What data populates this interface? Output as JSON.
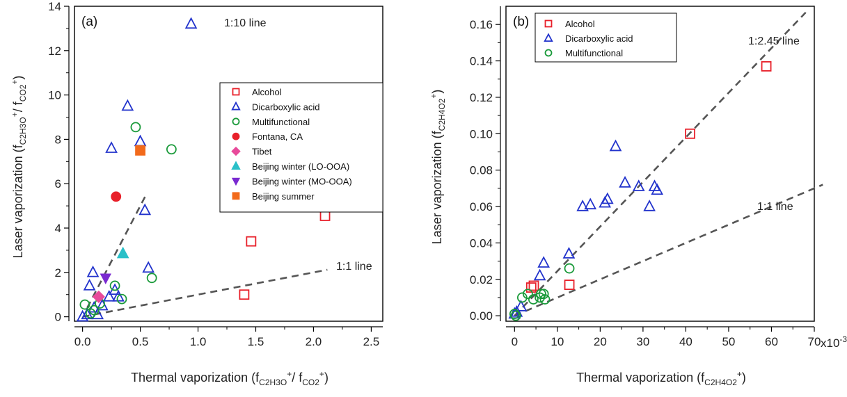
{
  "chart_data": [
    {
      "type": "scatter",
      "panel_label": "(a)",
      "xlabel": "Thermal vaporization (fC2H3O+/ fCO2+)",
      "ylabel": "Laser vaporization (fC2H3O+/ fCO2+)",
      "xlabel_parts": {
        "pre": "Thermal vaporization (f",
        "s1": "C",
        "n1": "2",
        "s2": "H",
        "n2": "3",
        "s3": "O",
        "sup1": "+",
        "mid": "/ f",
        "s4": "CO",
        "n3": "2",
        "sup2": "+",
        "post": ")"
      },
      "ylabel_parts": {
        "pre": "Laser vaporization (f",
        "s1": "C",
        "n1": "2",
        "s2": "H",
        "n2": "3",
        "s3": "O",
        "sup1": "+",
        "mid": "/ f",
        "s4": "CO",
        "n3": "2",
        "sup2": "+",
        "post": ")"
      },
      "xlim": [
        -0.07,
        2.6
      ],
      "ylim": [
        -0.2,
        14
      ],
      "xticks": [
        0.0,
        0.5,
        1.0,
        1.5,
        2.0,
        2.5
      ],
      "xtick_labels": [
        "0.0",
        "0.5",
        "1.0",
        "1.5",
        "2.0",
        "2.5"
      ],
      "yticks": [
        0,
        2,
        4,
        6,
        8,
        10,
        12,
        14
      ],
      "ytick_labels": [
        "0",
        "2",
        "4",
        "6",
        "8",
        "10",
        "12",
        "14"
      ],
      "legend_position": "center-right",
      "reference_lines": [
        {
          "label": "1:10 line",
          "slope": 10,
          "x_range": [
            0.04,
            0.55
          ]
        },
        {
          "label": "1:1 line",
          "slope": 1,
          "x_range": [
            0.0,
            2.12
          ]
        }
      ],
      "series": [
        {
          "name": "Alcohol",
          "marker": "square-open",
          "color": "#e8202a",
          "points": [
            [
              1.4,
              1.0
            ],
            [
              1.46,
              3.4
            ],
            [
              2.1,
              4.55
            ]
          ]
        },
        {
          "name": "Dicarboxylic acid",
          "marker": "triangle-open",
          "color": "#2233cc",
          "points": [
            [
              0.94,
              13.2
            ],
            [
              0.39,
              9.5
            ],
            [
              0.25,
              7.6
            ],
            [
              0.5,
              7.9
            ],
            [
              0.54,
              4.8
            ],
            [
              0.57,
              2.2
            ],
            [
              0.09,
              2.0
            ],
            [
              0.06,
              1.4
            ],
            [
              0.28,
              1.2
            ],
            [
              0.23,
              0.9
            ],
            [
              0.17,
              0.5
            ],
            [
              0.1,
              0.4
            ],
            [
              0.04,
              0.1
            ],
            [
              0.0,
              0.0
            ],
            [
              0.13,
              0.1
            ],
            [
              0.31,
              0.9
            ]
          ]
        },
        {
          "name": "Multifunctional",
          "marker": "circle-open",
          "color": "#1a9a3a",
          "points": [
            [
              0.46,
              8.55
            ],
            [
              0.77,
              7.55
            ],
            [
              0.6,
              1.75
            ],
            [
              0.28,
              1.4
            ],
            [
              0.34,
              0.8
            ],
            [
              0.02,
              0.55
            ],
            [
              0.1,
              0.3
            ],
            [
              0.07,
              0.15
            ],
            [
              0.15,
              0.6
            ]
          ]
        },
        {
          "name": "Fontana, CA",
          "marker": "circle-filled",
          "color": "#e8202a",
          "points": [
            [
              0.29,
              5.42
            ]
          ]
        },
        {
          "name": "Tibet",
          "marker": "diamond-filled",
          "color": "#e84a9a",
          "points": [
            [
              0.14,
              0.9
            ]
          ]
        },
        {
          "name": "Beijing winter (LO-OOA)",
          "marker": "triangle-filled",
          "color": "#2ac0c8",
          "points": [
            [
              0.35,
              2.85
            ]
          ]
        },
        {
          "name": "Beijing winter (MO-OOA)",
          "marker": "triangle-down-filled",
          "color": "#7a2ad0",
          "points": [
            [
              0.2,
              1.75
            ]
          ]
        },
        {
          "name": "Beijing summer",
          "marker": "square-filled",
          "color": "#f26a1b",
          "points": [
            [
              0.5,
              7.5
            ]
          ]
        }
      ]
    },
    {
      "type": "scatter",
      "panel_label": "(b)",
      "xlabel": "Thermal vaporization (fC2H4O2+)",
      "ylabel": "Laser vaporization (fC2H4O2+)",
      "xlabel_parts": {
        "pre": "Thermal vaporization (f",
        "s1": "C",
        "n1": "2",
        "s2": "H",
        "n2": "4",
        "s3": "O",
        "n3": "2",
        "sup1": "+",
        "post": ")"
      },
      "ylabel_parts": {
        "pre": "Laser vaporization (f",
        "s1": "C",
        "n1": "2",
        "s2": "H",
        "n2": "4",
        "s3": "O",
        "n3": "2",
        "sup1": "+",
        "post": ")"
      },
      "x_multiplier": "x10",
      "x_multiplier_exp": "-3",
      "xlim": [
        -2,
        70
      ],
      "ylim": [
        -0.003,
        0.17
      ],
      "xticks": [
        0,
        10,
        20,
        30,
        40,
        50,
        60,
        70
      ],
      "xtick_labels": [
        "0",
        "10",
        "20",
        "30",
        "40",
        "50",
        "60",
        "70"
      ],
      "yticks": [
        0.0,
        0.02,
        0.04,
        0.06,
        0.08,
        0.1,
        0.12,
        0.14,
        0.16
      ],
      "ytick_labels": [
        "0.00",
        "0.02",
        "0.04",
        "0.06",
        "0.08",
        "0.10",
        "0.12",
        "0.14",
        "0.16"
      ],
      "legend_position": "top-left",
      "reference_lines": [
        {
          "label": "1:2.45 line",
          "slope": 2.45,
          "x_range": [
            0,
            68
          ]
        },
        {
          "label": "1:1 line",
          "slope": 1,
          "x_range": [
            0,
            72
          ]
        }
      ],
      "series": [
        {
          "name": "Alcohol",
          "marker": "square-open",
          "color": "#e8202a",
          "points": [
            [
              58.8,
              0.137
            ],
            [
              41.0,
              0.1
            ],
            [
              12.8,
              0.017
            ],
            [
              4.5,
              0.0165
            ],
            [
              3.9,
              0.0155
            ]
          ]
        },
        {
          "name": "Dicarboxylic acid",
          "marker": "triangle-open",
          "color": "#2233cc",
          "points": [
            [
              23.6,
              0.093
            ],
            [
              25.8,
              0.073
            ],
            [
              29.0,
              0.071
            ],
            [
              32.7,
              0.071
            ],
            [
              33.3,
              0.069
            ],
            [
              31.5,
              0.06
            ],
            [
              21.7,
              0.064
            ],
            [
              21.1,
              0.062
            ],
            [
              17.7,
              0.061
            ],
            [
              15.9,
              0.06
            ],
            [
              12.7,
              0.034
            ],
            [
              6.8,
              0.029
            ],
            [
              5.9,
              0.022
            ],
            [
              1.5,
              0.005
            ],
            [
              0.5,
              0.002
            ],
            [
              0.0,
              0.001
            ]
          ]
        },
        {
          "name": "Multifunctional",
          "marker": "circle-open",
          "color": "#1a9a3a",
          "points": [
            [
              12.8,
              0.026
            ],
            [
              6.8,
              0.012
            ],
            [
              6.2,
              0.012
            ],
            [
              7.1,
              0.009
            ],
            [
              5.9,
              0.01
            ],
            [
              4.4,
              0.009
            ],
            [
              3.1,
              0.012
            ],
            [
              1.8,
              0.01
            ],
            [
              0.0,
              0.001
            ],
            [
              0.3,
              0.0
            ]
          ]
        }
      ]
    }
  ]
}
